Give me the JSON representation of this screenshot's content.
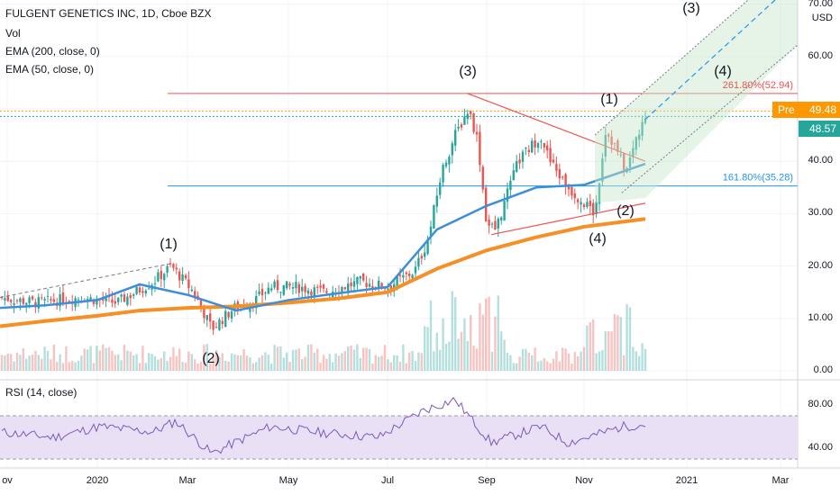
{
  "header": {
    "title": "FULGENT GENETICS INC, 1D, Cboe BZX",
    "vol_label": "Vol",
    "ema200_label": "EMA (200, close, 0)",
    "ema50_label": "EMA (50, close, 0)",
    "rsi_label": "RSI (14, close)"
  },
  "price_axis": {
    "currency": "USD",
    "ticks": [
      "70.00",
      "60.00",
      "50.00",
      "40.00",
      "30.00",
      "20.00",
      "10.00",
      "0.00"
    ],
    "pre_label": "Pre",
    "pre_price": "49.48",
    "last_price": "48.57"
  },
  "rsi_axis": {
    "ticks": [
      "80.00",
      "40.00"
    ]
  },
  "time_axis": {
    "ticks": [
      "ov",
      "2020",
      "Mar",
      "May",
      "Jul",
      "Sep",
      "Nov",
      "2021",
      "Mar"
    ]
  },
  "annotations": {
    "wave_labels": [
      "(1)",
      "(2)",
      "(3)",
      "(4)",
      "(1)",
      "(2)",
      "(3)",
      "(4)"
    ],
    "fib_261": "261.80%(52.94)",
    "fib_161": "161.80%(35.28)"
  },
  "colors": {
    "up": "#26a69a",
    "down": "#ef5350",
    "ema50": "#3c8fd8",
    "ema200": "#f68f26",
    "rsi_line": "#7e57c2",
    "rsi_band": "#e9e0f5",
    "fib_red": "#ef5350",
    "fib_blue": "#2196f3",
    "channel": "#c8e6c9",
    "pre_tag": "#ff9800",
    "last_tag": "#26a69a"
  },
  "chart_data": {
    "type": "line",
    "title": "FULGENT GENETICS INC, 1D, Cboe BZX",
    "x": [
      "2019-11",
      "2019-12",
      "2020-01",
      "2020-02",
      "2020-03",
      "2020-04",
      "2020-05",
      "2020-06",
      "2020-07",
      "2020-08",
      "2020-09",
      "2020-10",
      "2020-11",
      "2020-12"
    ],
    "series": [
      {
        "name": "EMA (200, close, 0)",
        "values": [
          8.5,
          9.5,
          10.5,
          11.5,
          12.0,
          12.3,
          13.0,
          13.8,
          15.0,
          19.5,
          23.0,
          25.5,
          27.5,
          29.0
        ]
      },
      {
        "name": "EMA (50, close, 0)",
        "values": [
          12.0,
          12.5,
          13.5,
          16.5,
          14.5,
          11.5,
          13.5,
          14.8,
          16.0,
          27.0,
          31.5,
          35.0,
          35.5,
          39.5
        ]
      }
    ],
    "close_approx": [
      14,
      13,
      14,
      20,
      8,
      12,
      16,
      16,
      19,
      48,
      30,
      45,
      48,
      48.57
    ],
    "ylim": [
      0,
      70
    ],
    "yticks": [
      0,
      10,
      20,
      30,
      40,
      50,
      60,
      70
    ],
    "fib_levels": [
      {
        "label": "261.80%",
        "value": 52.94
      },
      {
        "label": "161.80%",
        "value": 35.28
      }
    ],
    "rsi": {
      "label": "RSI (14, close)",
      "ylim": [
        30,
        90
      ],
      "band": [
        30,
        70
      ],
      "yticks": [
        40,
        80
      ]
    },
    "grid": true,
    "legend": "top-left"
  }
}
